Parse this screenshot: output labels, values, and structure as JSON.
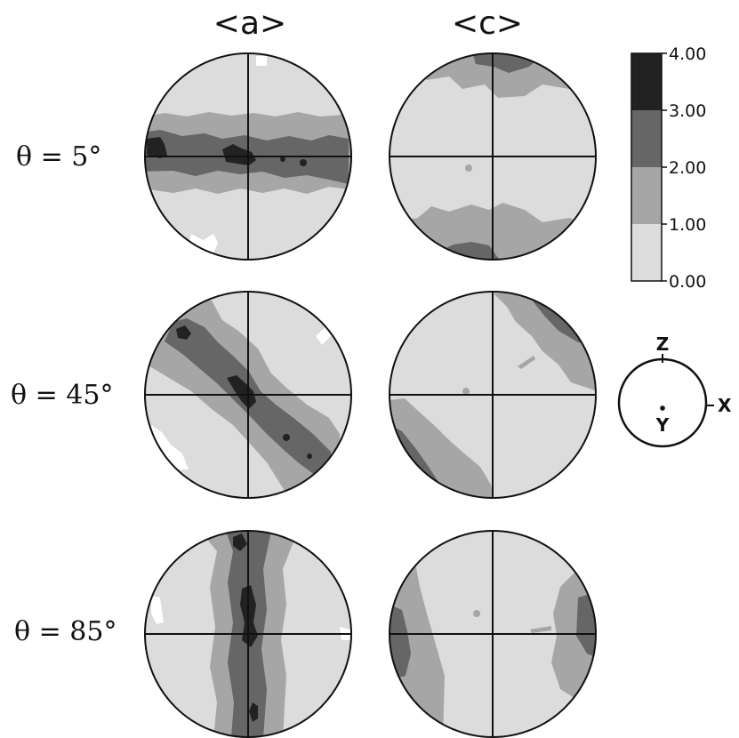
{
  "column_titles": [
    "<a>",
    "<c>"
  ],
  "row_labels": [
    "θ = 5°",
    "θ = 45°",
    "θ = 85°"
  ],
  "colorbar": {
    "ticks": [
      "4.00",
      "3.00",
      "2.00",
      "1.00",
      "0.00"
    ],
    "levels": [
      {
        "range": [
          0,
          1
        ],
        "color": "#dcdcdc"
      },
      {
        "range": [
          1,
          2
        ],
        "color": "#a6a6a6"
      },
      {
        "range": [
          2,
          3
        ],
        "color": "#666666"
      },
      {
        "range": [
          3,
          4
        ],
        "color": "#222222"
      }
    ]
  },
  "orientation_key": {
    "axes": [
      "Z",
      "X",
      "Y"
    ]
  },
  "pole_figures": [
    {
      "row": 0,
      "col": 0,
      "texture": "a-5"
    },
    {
      "row": 0,
      "col": 1,
      "texture": "c-5"
    },
    {
      "row": 1,
      "col": 0,
      "texture": "a-45"
    },
    {
      "row": 1,
      "col": 1,
      "texture": "c-45"
    },
    {
      "row": 2,
      "col": 0,
      "texture": "a-85"
    },
    {
      "row": 2,
      "col": 1,
      "texture": "c-85"
    }
  ]
}
